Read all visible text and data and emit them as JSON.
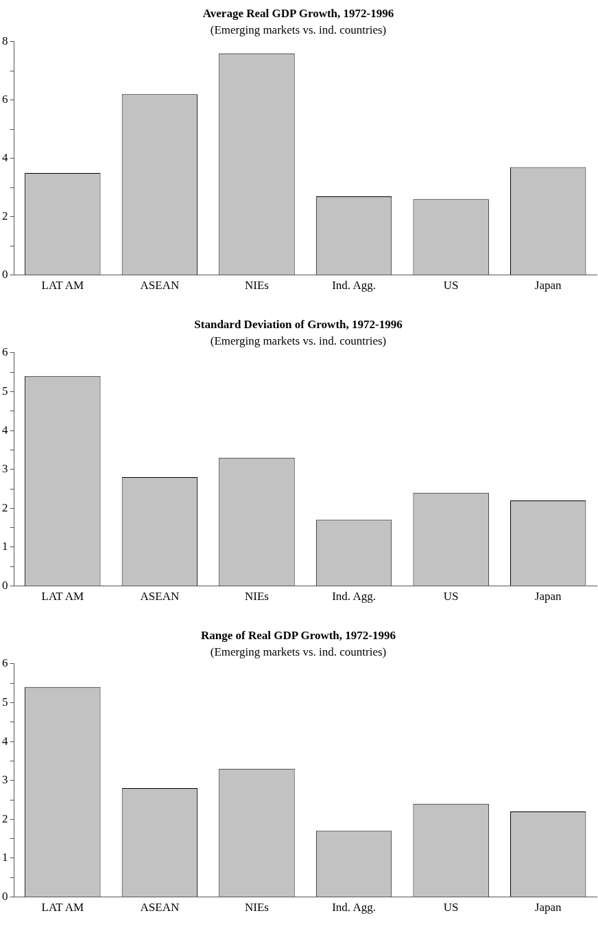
{
  "chart_data": [
    {
      "type": "bar",
      "title": "Average Real GDP Growth, 1972-1996",
      "subtitle": "(Emerging markets vs. ind. countries)",
      "categories": [
        "LAT AM",
        "ASEAN",
        "NIEs",
        "Ind. Agg.",
        "US",
        "Japan"
      ],
      "values": [
        3.5,
        6.2,
        7.6,
        2.7,
        2.6,
        3.7
      ],
      "color": "#c2c2c2",
      "ylim": [
        0,
        8
      ],
      "yticks": [
        0,
        {
          "value": 1,
          "label": null
        },
        2,
        {
          "value": 3,
          "label": null
        },
        4,
        {
          "value": 5,
          "label": null
        },
        6,
        {
          "value": 7,
          "label": null
        },
        8
      ],
      "grid": false,
      "legend": false
    },
    {
      "type": "bar",
      "title": "Standard Deviation of Growth, 1972-1996",
      "subtitle": "(Emerging markets vs. ind. countries)",
      "categories": [
        "LAT AM",
        "ASEAN",
        "NIEs",
        "Ind. Agg.",
        "US",
        "Japan"
      ],
      "values": [
        5.4,
        2.8,
        3.3,
        1.7,
        2.4,
        2.2
      ],
      "color": "#c2c2c2",
      "ylim": [
        0,
        6
      ],
      "yticks": [
        0,
        {
          "value": 0.5,
          "label": null
        },
        1,
        {
          "value": 1.5,
          "label": null
        },
        2,
        {
          "value": 2.5,
          "label": null
        },
        3,
        {
          "value": 3.5,
          "label": null
        },
        4,
        {
          "value": 4.5,
          "label": null
        },
        5,
        {
          "value": 5.5,
          "label": null
        },
        6
      ],
      "grid": false,
      "legend": false
    },
    {
      "type": "bar",
      "title": "Range of Real GDP Growth, 1972-1996",
      "subtitle": "(Emerging markets vs. ind. countries)",
      "categories": [
        "LAT AM",
        "ASEAN",
        "NIEs",
        "Ind. Agg.",
        "US",
        "Japan"
      ],
      "values": [
        5.4,
        2.8,
        3.3,
        1.7,
        2.4,
        2.2
      ],
      "color": "#c2c2c2",
      "ylim": [
        0,
        6
      ],
      "yticks": [
        0,
        {
          "value": 0.5,
          "label": null
        },
        1,
        {
          "value": 1.5,
          "label": null
        },
        2,
        {
          "value": 2.5,
          "label": null
        },
        3,
        {
          "value": 3.5,
          "label": null
        },
        4,
        {
          "value": 4.5,
          "label": null
        },
        5,
        {
          "value": 5.5,
          "label": null
        },
        6
      ],
      "grid": false,
      "legend": false
    }
  ]
}
